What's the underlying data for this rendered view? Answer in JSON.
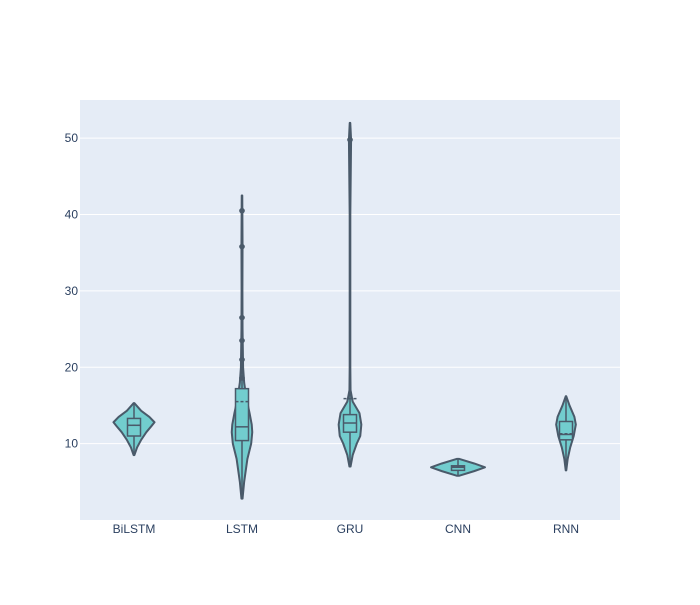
{
  "chart_data": {
    "type": "violin",
    "title": "",
    "xlabel": "",
    "ylabel": "",
    "categories": [
      "BiLSTM",
      "LSTM",
      "GRU",
      "CNN",
      "RNN"
    ],
    "ylim": [
      0,
      55
    ],
    "yticks": [
      10,
      20,
      30,
      40,
      50
    ],
    "grid": true,
    "legend": "none",
    "colors": {
      "plot_background": "#E5ECF6",
      "violin_fill": "#72CDCE",
      "line": "#4A5A6A",
      "tick_text": "#2A3F5F",
      "gridline": "#FFFFFF"
    },
    "violins": [
      {
        "category": "BiLSTM",
        "min": 8.5,
        "q1": 11.0,
        "median": 12.4,
        "q3": 13.3,
        "max": 15.3,
        "mean": 12.4,
        "density": [
          [
            8.5,
            0.02
          ],
          [
            9.5,
            0.15
          ],
          [
            10.5,
            0.35
          ],
          [
            11.5,
            0.6
          ],
          [
            12.3,
            0.85
          ],
          [
            12.8,
            1.0
          ],
          [
            13.5,
            0.75
          ],
          [
            14.3,
            0.35
          ],
          [
            15.3,
            0.02
          ]
        ],
        "width_scale": 0.38,
        "outliers": []
      },
      {
        "category": "LSTM",
        "min": 2.8,
        "q1": 10.4,
        "median": 12.2,
        "q3": 17.2,
        "max": 42.5,
        "mean": 15.5,
        "density": [
          [
            2.8,
            0.02
          ],
          [
            5,
            0.08
          ],
          [
            8,
            0.2
          ],
          [
            10,
            0.34
          ],
          [
            11.5,
            0.38
          ],
          [
            12.5,
            0.36
          ],
          [
            14,
            0.28
          ],
          [
            16,
            0.16
          ],
          [
            18,
            0.08
          ],
          [
            20,
            0.04
          ],
          [
            25,
            0.02
          ],
          [
            30,
            0.015
          ],
          [
            36,
            0.02
          ],
          [
            42.5,
            0.01
          ]
        ],
        "width_scale": 0.5,
        "outliers": [
          18.6,
          21.0,
          23.5,
          26.5,
          35.8,
          40.5
        ]
      },
      {
        "category": "GRU",
        "min": 7.0,
        "q1": 11.5,
        "median": 12.7,
        "q3": 13.8,
        "max": 52.0,
        "mean": 15.9,
        "density": [
          [
            7,
            0.02
          ],
          [
            8.5,
            0.1
          ],
          [
            10,
            0.25
          ],
          [
            11,
            0.38
          ],
          [
            12.5,
            0.42
          ],
          [
            14,
            0.35
          ],
          [
            15.5,
            0.1
          ],
          [
            17,
            0.02
          ],
          [
            20,
            0.012
          ],
          [
            30,
            0.012
          ],
          [
            40,
            0.012
          ],
          [
            49.8,
            0.04
          ],
          [
            52,
            0.01
          ]
        ],
        "width_scale": 0.5,
        "outliers": [
          49.8
        ]
      },
      {
        "category": "CNN",
        "min": 5.8,
        "q1": 6.5,
        "median": 6.9,
        "q3": 7.1,
        "max": 8.0,
        "mean": 6.9,
        "density": [
          [
            5.8,
            0.05
          ],
          [
            6.4,
            0.6
          ],
          [
            6.9,
            1.0
          ],
          [
            7.4,
            0.6
          ],
          [
            8.0,
            0.05
          ]
        ],
        "width_scale": 0.5,
        "outliers": []
      },
      {
        "category": "RNN",
        "min": 6.5,
        "q1": 10.5,
        "median": 11.2,
        "q3": 12.9,
        "max": 16.2,
        "mean": 11.3,
        "density": [
          [
            6.5,
            0.02
          ],
          [
            8,
            0.12
          ],
          [
            9.5,
            0.3
          ],
          [
            11,
            0.55
          ],
          [
            12.5,
            0.7
          ],
          [
            13.5,
            0.6
          ],
          [
            15,
            0.25
          ],
          [
            16.2,
            0.02
          ]
        ],
        "width_scale": 0.26,
        "outliers": []
      }
    ]
  }
}
